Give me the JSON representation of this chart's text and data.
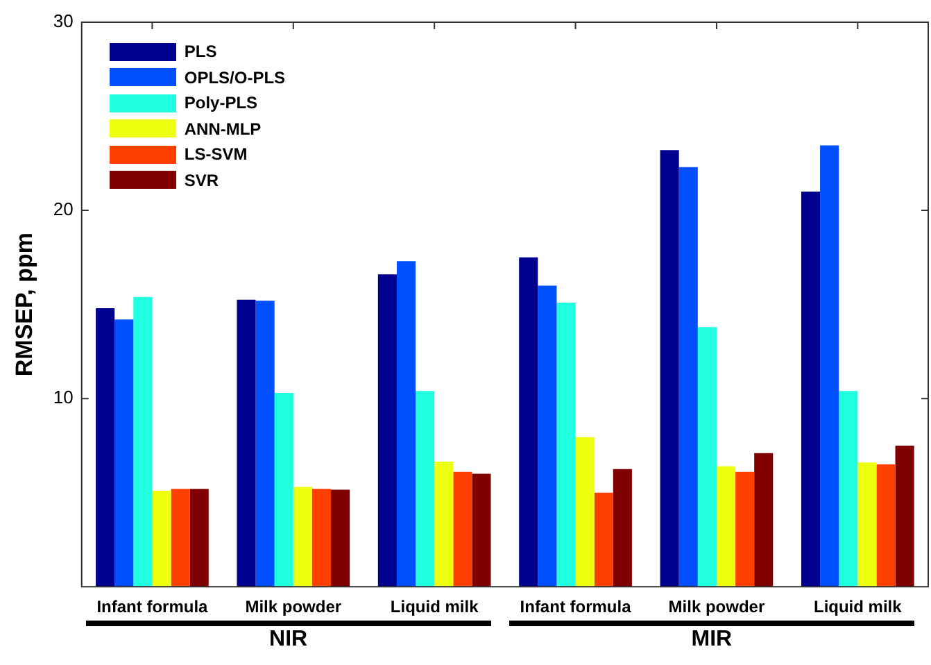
{
  "chart_data": {
    "type": "bar",
    "categories": [
      "Infant formula",
      "Milk powder",
      "Liquid milk",
      "Infant formula",
      "Milk powder",
      "Liquid milk"
    ],
    "series": [
      {
        "name": "PLS",
        "color": "#00008f",
        "values": [
          14.8,
          15.25,
          16.6,
          17.5,
          23.2,
          21.0
        ]
      },
      {
        "name": "OPLS/O-PLS",
        "color": "#0050ff",
        "values": [
          14.2,
          15.2,
          17.3,
          16.0,
          22.3,
          23.45
        ]
      },
      {
        "name": "Poly-PLS",
        "color": "#20ffdf",
        "values": [
          15.4,
          10.3,
          10.4,
          15.1,
          13.8,
          10.4
        ]
      },
      {
        "name": "ANN-MLP",
        "color": "#efff10",
        "values": [
          5.1,
          5.3,
          6.65,
          7.95,
          6.4,
          6.6
        ]
      },
      {
        "name": "LS-SVM",
        "color": "#ff4000",
        "values": [
          5.2,
          5.2,
          6.1,
          5.0,
          6.1,
          6.5
        ]
      },
      {
        "name": "SVR",
        "color": "#800000",
        "values": [
          5.2,
          5.15,
          6.0,
          6.25,
          7.1,
          7.5
        ]
      }
    ],
    "ylabel": "RMSEP, ppm",
    "ylim": [
      0,
      30
    ],
    "yticks": [
      10,
      20,
      30
    ],
    "annotations": [
      "NIR",
      "MIR"
    ],
    "grid": false,
    "legend": "top left"
  }
}
